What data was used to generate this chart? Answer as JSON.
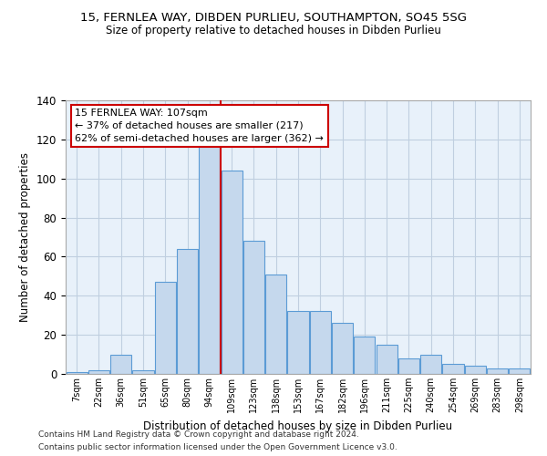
{
  "title1": "15, FERNLEA WAY, DIBDEN PURLIEU, SOUTHAMPTON, SO45 5SG",
  "title2": "Size of property relative to detached houses in Dibden Purlieu",
  "xlabel": "Distribution of detached houses by size in Dibden Purlieu",
  "ylabel": "Number of detached properties",
  "categories": [
    "7sqm",
    "22sqm",
    "36sqm",
    "51sqm",
    "65sqm",
    "80sqm",
    "94sqm",
    "109sqm",
    "123sqm",
    "138sqm",
    "153sqm",
    "167sqm",
    "182sqm",
    "196sqm",
    "211sqm",
    "225sqm",
    "240sqm",
    "254sqm",
    "269sqm",
    "283sqm",
    "298sqm"
  ],
  "values": [
    1,
    2,
    10,
    2,
    47,
    64,
    118,
    104,
    68,
    51,
    32,
    32,
    26,
    19,
    15,
    8,
    10,
    5,
    4,
    3,
    3
  ],
  "bar_color": "#c5d8ed",
  "bar_edge_color": "#5b9bd5",
  "property_line_x": 6.5,
  "property_sqm": 107,
  "annotation_text": "15 FERNLEA WAY: 107sqm\n← 37% of detached houses are smaller (217)\n62% of semi-detached houses are larger (362) →",
  "annotation_box_color": "#ffffff",
  "annotation_box_edge": "#cc0000",
  "vline_color": "#cc0000",
  "grid_color": "#c0cfe0",
  "plot_background": "#e8f1fa",
  "ylim": [
    0,
    140
  ],
  "yticks": [
    0,
    20,
    40,
    60,
    80,
    100,
    120,
    140
  ],
  "footer1": "Contains HM Land Registry data © Crown copyright and database right 2024.",
  "footer2": "Contains public sector information licensed under the Open Government Licence v3.0."
}
